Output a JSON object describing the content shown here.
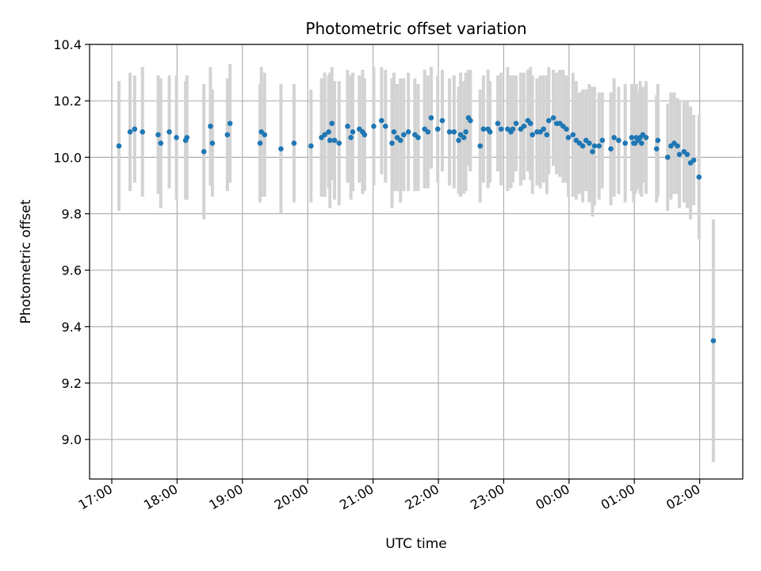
{
  "chart_data": {
    "type": "scatter",
    "title": "Photometric offset variation",
    "xlabel": "UTC time",
    "ylabel": "Photometric offset",
    "x_unit": "hours since 17:00 UTC",
    "xlim": [
      -0.34,
      9.66
    ],
    "ylim": [
      8.86,
      10.4
    ],
    "x_ticks": [
      0,
      1,
      2,
      3,
      4,
      5,
      6,
      7,
      8,
      9
    ],
    "x_tick_labels": [
      "17:00",
      "18:00",
      "19:00",
      "20:00",
      "21:00",
      "22:00",
      "23:00",
      "00:00",
      "01:00",
      "02:00"
    ],
    "y_ticks": [
      9.0,
      9.2,
      9.4,
      9.6,
      9.8,
      10.0,
      10.2,
      10.4
    ],
    "y_tick_labels": [
      "9.0",
      "9.2",
      "9.4",
      "9.6",
      "9.8",
      "10.0",
      "10.2",
      "10.4"
    ],
    "grid": true,
    "colors": {
      "point": "#1f77b4",
      "errorbar": "#d3d3d3",
      "grid": "#b0b0b0"
    },
    "series": [
      {
        "name": "offset",
        "x": [
          0.11,
          0.28,
          0.35,
          0.47,
          0.71,
          0.75,
          0.88,
          0.99,
          1.13,
          1.15,
          1.41,
          1.51,
          1.54,
          1.77,
          1.81,
          2.27,
          2.29,
          2.34,
          2.59,
          2.79,
          3.05,
          3.21,
          3.26,
          3.32,
          3.34,
          3.37,
          3.41,
          3.48,
          3.61,
          3.66,
          3.69,
          3.79,
          3.84,
          3.87,
          4.01,
          4.13,
          4.19,
          4.29,
          4.32,
          4.37,
          4.42,
          4.47,
          4.54,
          4.64,
          4.69,
          4.79,
          4.84,
          4.89,
          4.99,
          5.06,
          5.17,
          5.24,
          5.31,
          5.34,
          5.39,
          5.42,
          5.46,
          5.49,
          5.64,
          5.69,
          5.76,
          5.79,
          5.91,
          5.96,
          6.06,
          6.11,
          6.14,
          6.19,
          6.26,
          6.31,
          6.37,
          6.41,
          6.44,
          6.51,
          6.56,
          6.61,
          6.66,
          6.69,
          6.76,
          6.81,
          6.86,
          6.91,
          6.96,
          6.99,
          7.06,
          7.11,
          7.16,
          7.21,
          7.26,
          7.31,
          7.36,
          7.39,
          7.46,
          7.51,
          7.64,
          7.69,
          7.76,
          7.86,
          7.96,
          7.99,
          8.01,
          8.03,
          8.06,
          8.09,
          8.11,
          8.13,
          8.18,
          8.34,
          8.36,
          8.51,
          8.56,
          8.61,
          8.66,
          8.69,
          8.76,
          8.81,
          8.86,
          8.91,
          8.99,
          9.21
        ],
        "y": [
          10.04,
          10.09,
          10.1,
          10.09,
          10.08,
          10.05,
          10.09,
          10.07,
          10.06,
          10.07,
          10.02,
          10.11,
          10.05,
          10.08,
          10.12,
          10.05,
          10.09,
          10.08,
          10.03,
          10.05,
          10.04,
          10.07,
          10.08,
          10.09,
          10.06,
          10.12,
          10.06,
          10.05,
          10.11,
          10.07,
          10.09,
          10.1,
          10.09,
          10.08,
          10.11,
          10.13,
          10.11,
          10.05,
          10.09,
          10.07,
          10.06,
          10.08,
          10.09,
          10.08,
          10.07,
          10.1,
          10.09,
          10.14,
          10.1,
          10.13,
          10.09,
          10.09,
          10.06,
          10.08,
          10.07,
          10.09,
          10.14,
          10.13,
          10.04,
          10.1,
          10.1,
          10.09,
          10.12,
          10.1,
          10.1,
          10.09,
          10.1,
          10.12,
          10.1,
          10.11,
          10.13,
          10.12,
          10.08,
          10.09,
          10.09,
          10.1,
          10.08,
          10.13,
          10.14,
          10.12,
          10.12,
          10.11,
          10.1,
          10.07,
          10.08,
          10.06,
          10.05,
          10.04,
          10.06,
          10.05,
          10.02,
          10.04,
          10.04,
          10.06,
          10.03,
          10.07,
          10.06,
          10.05,
          10.07,
          10.05,
          10.05,
          10.07,
          10.06,
          10.07,
          10.05,
          10.08,
          10.07,
          10.03,
          10.06,
          10.0,
          10.04,
          10.05,
          10.04,
          10.01,
          10.02,
          10.01,
          9.98,
          9.99,
          9.93,
          9.35
        ],
        "err": [
          0.23,
          0.21,
          0.19,
          0.23,
          0.21,
          0.23,
          0.2,
          0.22,
          0.21,
          0.22,
          0.24,
          0.21,
          0.19,
          0.2,
          0.21,
          0.21,
          0.23,
          0.22,
          0.23,
          0.21,
          0.2,
          0.21,
          0.22,
          0.2,
          0.24,
          0.2,
          0.21,
          0.22,
          0.2,
          0.22,
          0.21,
          0.19,
          0.22,
          0.2,
          0.21,
          0.19,
          0.2,
          0.23,
          0.21,
          0.19,
          0.22,
          0.2,
          0.21,
          0.2,
          0.19,
          0.21,
          0.2,
          0.18,
          0.19,
          0.18,
          0.19,
          0.2,
          0.19,
          0.22,
          0.2,
          0.21,
          0.17,
          0.18,
          0.2,
          0.19,
          0.21,
          0.18,
          0.17,
          0.2,
          0.22,
          0.2,
          0.19,
          0.17,
          0.2,
          0.19,
          0.18,
          0.2,
          0.21,
          0.19,
          0.2,
          0.19,
          0.21,
          0.19,
          0.17,
          0.18,
          0.19,
          0.2,
          0.19,
          0.21,
          0.22,
          0.21,
          0.18,
          0.2,
          0.18,
          0.21,
          0.23,
          0.21,
          0.19,
          0.17,
          0.2,
          0.21,
          0.19,
          0.21,
          0.19,
          0.21,
          0.18,
          0.19,
          0.17,
          0.2,
          0.19,
          0.17,
          0.2,
          0.19,
          0.2,
          0.19,
          0.19,
          0.18,
          0.17,
          0.19,
          0.18,
          0.19,
          0.2,
          0.16,
          0.22,
          0.43
        ]
      }
    ]
  }
}
